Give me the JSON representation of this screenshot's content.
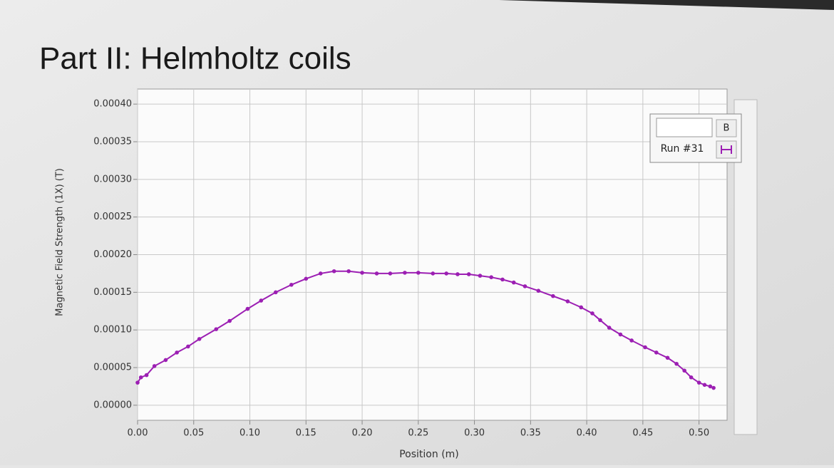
{
  "title": "Part II: Helmholtz coils",
  "chart_data": {
    "type": "line",
    "x_label": "Position (m)",
    "y_label": "Magnetic Field Strength (1X) (T)",
    "legend_column_label": "B",
    "x": [
      0.0,
      0.003,
      0.008,
      0.015,
      0.025,
      0.035,
      0.045,
      0.055,
      0.07,
      0.082,
      0.098,
      0.11,
      0.123,
      0.137,
      0.15,
      0.163,
      0.175,
      0.188,
      0.2,
      0.213,
      0.225,
      0.238,
      0.25,
      0.263,
      0.275,
      0.285,
      0.295,
      0.305,
      0.315,
      0.325,
      0.335,
      0.345,
      0.357,
      0.37,
      0.383,
      0.395,
      0.405,
      0.412,
      0.42,
      0.43,
      0.44,
      0.452,
      0.462,
      0.472,
      0.48,
      0.487,
      0.493,
      0.5,
      0.505,
      0.51,
      0.513
    ],
    "series": [
      {
        "name": "Run #31",
        "color": "#9c1fb3",
        "values": [
          3e-05,
          3.7e-05,
          4e-05,
          5.2e-05,
          6e-05,
          7e-05,
          7.8e-05,
          8.8e-05,
          0.000101,
          0.000112,
          0.000128,
          0.000139,
          0.00015,
          0.00016,
          0.000168,
          0.000175,
          0.000178,
          0.000178,
          0.000176,
          0.000175,
          0.000175,
          0.000176,
          0.000176,
          0.000175,
          0.000175,
          0.000174,
          0.000174,
          0.000172,
          0.00017,
          0.000167,
          0.000163,
          0.000158,
          0.000152,
          0.000145,
          0.000138,
          0.00013,
          0.000122,
          0.000113,
          0.000103,
          9.4e-05,
          8.6e-05,
          7.7e-05,
          7e-05,
          6.3e-05,
          5.5e-05,
          4.6e-05,
          3.7e-05,
          3e-05,
          2.7e-05,
          2.5e-05,
          2.3e-05
        ]
      }
    ],
    "xlim": [
      0,
      0.525
    ],
    "ylim": [
      -2e-05,
      0.00042
    ],
    "xticks": [
      {
        "value": 0,
        "label": "0.00"
      },
      {
        "value": 0.05,
        "label": "0.05"
      },
      {
        "value": 0.1,
        "label": "0.10"
      },
      {
        "value": 0.15,
        "label": "0.15"
      },
      {
        "value": 0.2,
        "label": "0.20"
      },
      {
        "value": 0.25,
        "label": "0.25"
      },
      {
        "value": 0.3,
        "label": "0.30"
      },
      {
        "value": 0.35,
        "label": "0.35"
      },
      {
        "value": 0.4,
        "label": "0.40"
      },
      {
        "value": 0.45,
        "label": "0.45"
      },
      {
        "value": 0.5,
        "label": "0.50"
      }
    ],
    "yticks": [
      {
        "value": 0,
        "label": "0.00000"
      },
      {
        "value": 5e-05,
        "label": "0.00005"
      },
      {
        "value": 0.0001,
        "label": "0.00010"
      },
      {
        "value": 0.00015,
        "label": "0.00015"
      },
      {
        "value": 0.0002,
        "label": "0.00020"
      },
      {
        "value": 0.00025,
        "label": "0.00025"
      },
      {
        "value": 0.0003,
        "label": "0.00030"
      },
      {
        "value": 0.00035,
        "label": "0.00035"
      },
      {
        "value": 0.0004,
        "label": "0.00040"
      }
    ],
    "grid": true
  }
}
